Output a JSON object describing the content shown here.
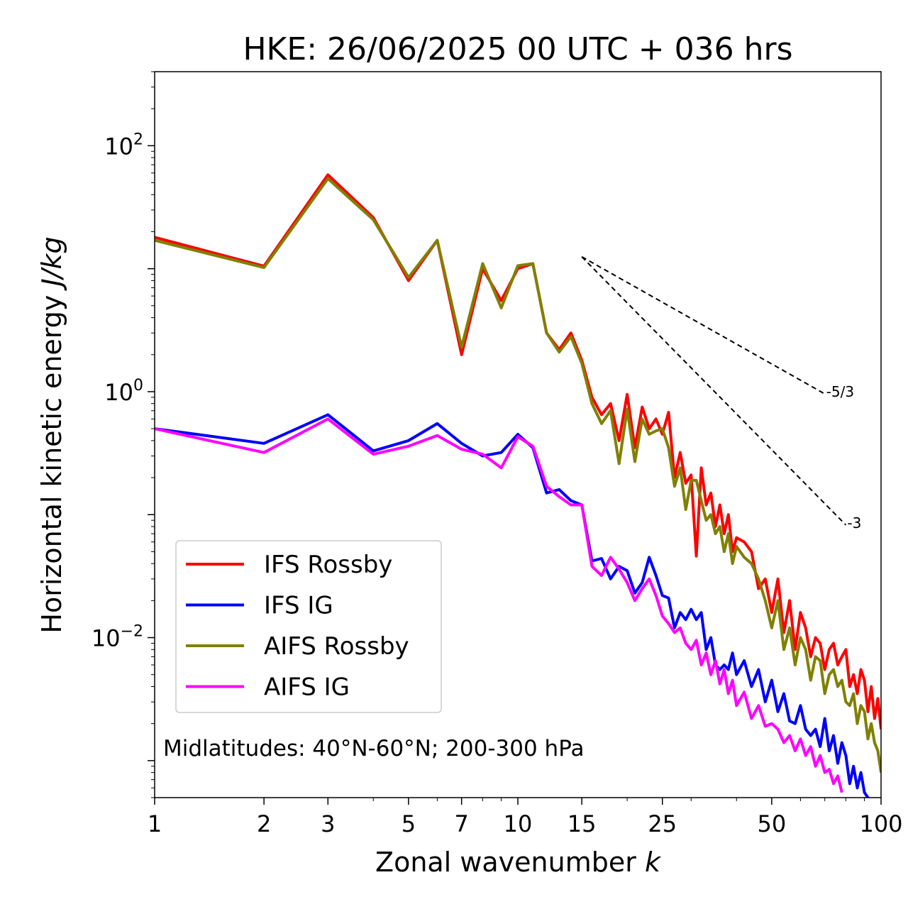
{
  "chart_data": {
    "type": "line",
    "title": "HKE: 26/06/2025 00 UTC + 036 hrs",
    "xlabel": "Zonal wavenumber",
    "xlabel_symbol": "k",
    "ylabel": "Horizontal kinetic energy",
    "ylabel_unit": "J/kg",
    "xscale": "log",
    "yscale": "log",
    "xlim": [
      1,
      100
    ],
    "ylim": [
      0.0005,
      400
    ],
    "xticks": [
      1,
      2,
      3,
      5,
      7,
      10,
      15,
      25,
      50,
      100
    ],
    "xtick_labels": [
      "1",
      "2",
      "3",
      "5",
      "7",
      "10",
      "15",
      "25",
      "50",
      "100"
    ],
    "yticks": [
      {
        "value": 100,
        "base": "10",
        "exp": "2"
      },
      {
        "value": 1,
        "base": "10",
        "exp": "0"
      },
      {
        "value": 0.01,
        "base": "10",
        "exp": "−2"
      }
    ],
    "grid": false,
    "legend_position": "lower-left",
    "annotation": "Midlatitudes: 40°N-60°N; 200-300 hPa",
    "reference_lines": [
      {
        "label": "-5/3",
        "slope": -1.6667,
        "x_start": 15,
        "x_end": 70,
        "y_start": 12.5
      },
      {
        "label": "-3",
        "slope": -3,
        "x_start": 15,
        "x_end": 80,
        "y_start": 12.5
      }
    ],
    "series": [
      {
        "name": "IFS Rossby",
        "color": "#ff0000",
        "x": [
          1,
          2,
          3,
          4,
          5,
          6,
          7,
          8,
          9,
          10,
          11,
          12,
          13,
          14,
          15,
          16,
          17,
          18,
          19,
          20,
          21,
          22,
          23,
          24,
          25,
          26,
          27,
          28,
          29,
          30,
          31,
          32,
          33,
          34,
          35,
          36,
          37,
          38,
          39,
          40,
          42,
          44,
          46,
          48,
          50,
          52,
          54,
          56,
          58,
          60,
          62,
          64,
          66,
          68,
          70,
          72,
          74,
          76,
          78,
          80,
          82,
          84,
          86,
          88,
          90,
          92,
          94,
          96,
          98,
          100
        ],
        "y": [
          18,
          10.5,
          58,
          26,
          8,
          17,
          2,
          10,
          5.5,
          10,
          11,
          3,
          2.2,
          3,
          1.8,
          0.9,
          0.65,
          0.8,
          0.4,
          0.95,
          0.35,
          0.75,
          0.5,
          0.6,
          0.45,
          0.68,
          0.2,
          0.32,
          0.18,
          0.21,
          0.046,
          0.24,
          0.12,
          0.15,
          0.08,
          0.12,
          0.07,
          0.1,
          0.05,
          0.065,
          0.06,
          0.05,
          0.025,
          0.03,
          0.016,
          0.03,
          0.011,
          0.02,
          0.008,
          0.016,
          0.012,
          0.007,
          0.01,
          0.009,
          0.0055,
          0.008,
          0.009,
          0.006,
          0.007,
          0.008,
          0.004,
          0.005,
          0.0035,
          0.0055,
          0.0045,
          0.0025,
          0.004,
          0.0022,
          0.0032,
          0.0018
        ]
      },
      {
        "name": "IFS IG",
        "color": "#0000ff",
        "x": [
          1,
          2,
          3,
          4,
          5,
          6,
          7,
          8,
          9,
          10,
          11,
          12,
          13,
          14,
          15,
          16,
          17,
          18,
          19,
          20,
          21,
          22,
          23,
          24,
          25,
          26,
          27,
          28,
          29,
          30,
          31,
          32,
          33,
          34,
          35,
          36,
          37,
          38,
          39,
          40,
          42,
          44,
          46,
          48,
          50,
          52,
          54,
          56,
          58,
          60,
          62,
          64,
          66,
          68,
          70,
          72,
          74,
          76,
          78,
          80,
          82,
          84,
          86,
          88,
          90,
          92,
          94,
          96,
          98,
          100
        ],
        "y": [
          0.5,
          0.38,
          0.65,
          0.33,
          0.4,
          0.55,
          0.38,
          0.3,
          0.32,
          0.45,
          0.35,
          0.15,
          0.16,
          0.13,
          0.12,
          0.042,
          0.044,
          0.03,
          0.038,
          0.035,
          0.023,
          0.028,
          0.045,
          0.032,
          0.022,
          0.021,
          0.012,
          0.016,
          0.014,
          0.017,
          0.014,
          0.016,
          0.008,
          0.01,
          0.006,
          0.0055,
          0.006,
          0.0055,
          0.0075,
          0.005,
          0.0065,
          0.004,
          0.0055,
          0.003,
          0.0045,
          0.0025,
          0.0035,
          0.0021,
          0.002,
          0.0028,
          0.0018,
          0.0016,
          0.0018,
          0.0013,
          0.0022,
          0.0012,
          0.0016,
          0.00095,
          0.0014,
          0.0011,
          0.00065,
          0.0009,
          0.0006,
          0.0008,
          0.00055,
          0.0005,
          0.00045,
          0.0004,
          0.00035,
          0.0003
        ]
      },
      {
        "name": "AIFS Rossby",
        "color": "#808000",
        "x": [
          1,
          2,
          3,
          4,
          5,
          6,
          7,
          8,
          9,
          10,
          11,
          12,
          13,
          14,
          15,
          16,
          17,
          18,
          19,
          20,
          21,
          22,
          23,
          24,
          25,
          26,
          27,
          28,
          29,
          30,
          31,
          32,
          33,
          34,
          35,
          36,
          37,
          38,
          39,
          40,
          42,
          44,
          46,
          48,
          50,
          52,
          54,
          56,
          58,
          60,
          62,
          64,
          66,
          68,
          70,
          72,
          74,
          76,
          78,
          80,
          82,
          84,
          86,
          88,
          90,
          92,
          94,
          96,
          98,
          100
        ],
        "y": [
          17,
          10.2,
          54,
          25,
          8.5,
          17,
          2.3,
          11,
          4.8,
          10.6,
          11,
          3,
          2.1,
          2.8,
          1.7,
          0.8,
          0.55,
          0.7,
          0.26,
          0.72,
          0.27,
          0.6,
          0.45,
          0.48,
          0.5,
          0.35,
          0.17,
          0.24,
          0.11,
          0.19,
          0.19,
          0.13,
          0.09,
          0.1,
          0.07,
          0.08,
          0.05,
          0.07,
          0.04,
          0.055,
          0.045,
          0.04,
          0.03,
          0.02,
          0.012,
          0.02,
          0.008,
          0.012,
          0.006,
          0.01,
          0.008,
          0.0045,
          0.007,
          0.0065,
          0.0035,
          0.005,
          0.0055,
          0.004,
          0.0045,
          0.003,
          0.0028,
          0.0035,
          0.002,
          0.0028,
          0.0025,
          0.0015,
          0.002,
          0.0014,
          0.0012,
          0.0008
        ]
      },
      {
        "name": "AIFS IG",
        "color": "#ff00ff",
        "x": [
          1,
          2,
          3,
          4,
          5,
          6,
          7,
          8,
          9,
          10,
          11,
          12,
          13,
          14,
          15,
          16,
          17,
          18,
          19,
          20,
          21,
          22,
          23,
          24,
          25,
          26,
          27,
          28,
          29,
          30,
          31,
          32,
          33,
          34,
          35,
          36,
          37,
          38,
          39,
          40,
          42,
          44,
          46,
          48,
          50,
          52,
          54,
          56,
          58,
          60,
          62,
          64,
          66,
          68,
          70,
          72,
          74,
          76,
          78
        ],
        "y": [
          0.5,
          0.32,
          0.6,
          0.31,
          0.36,
          0.44,
          0.34,
          0.31,
          0.24,
          0.43,
          0.36,
          0.17,
          0.14,
          0.12,
          0.12,
          0.038,
          0.032,
          0.045,
          0.036,
          0.028,
          0.02,
          0.025,
          0.03,
          0.022,
          0.015,
          0.013,
          0.011,
          0.012,
          0.009,
          0.008,
          0.0095,
          0.006,
          0.0075,
          0.005,
          0.0065,
          0.0042,
          0.0055,
          0.0035,
          0.0045,
          0.0028,
          0.0036,
          0.0022,
          0.0028,
          0.0019,
          0.002,
          0.0018,
          0.0014,
          0.0016,
          0.0012,
          0.0015,
          0.0011,
          0.0013,
          0.0009,
          0.0011,
          0.0008,
          0.00085,
          0.00065,
          0.00075,
          0.00055
        ]
      }
    ]
  }
}
